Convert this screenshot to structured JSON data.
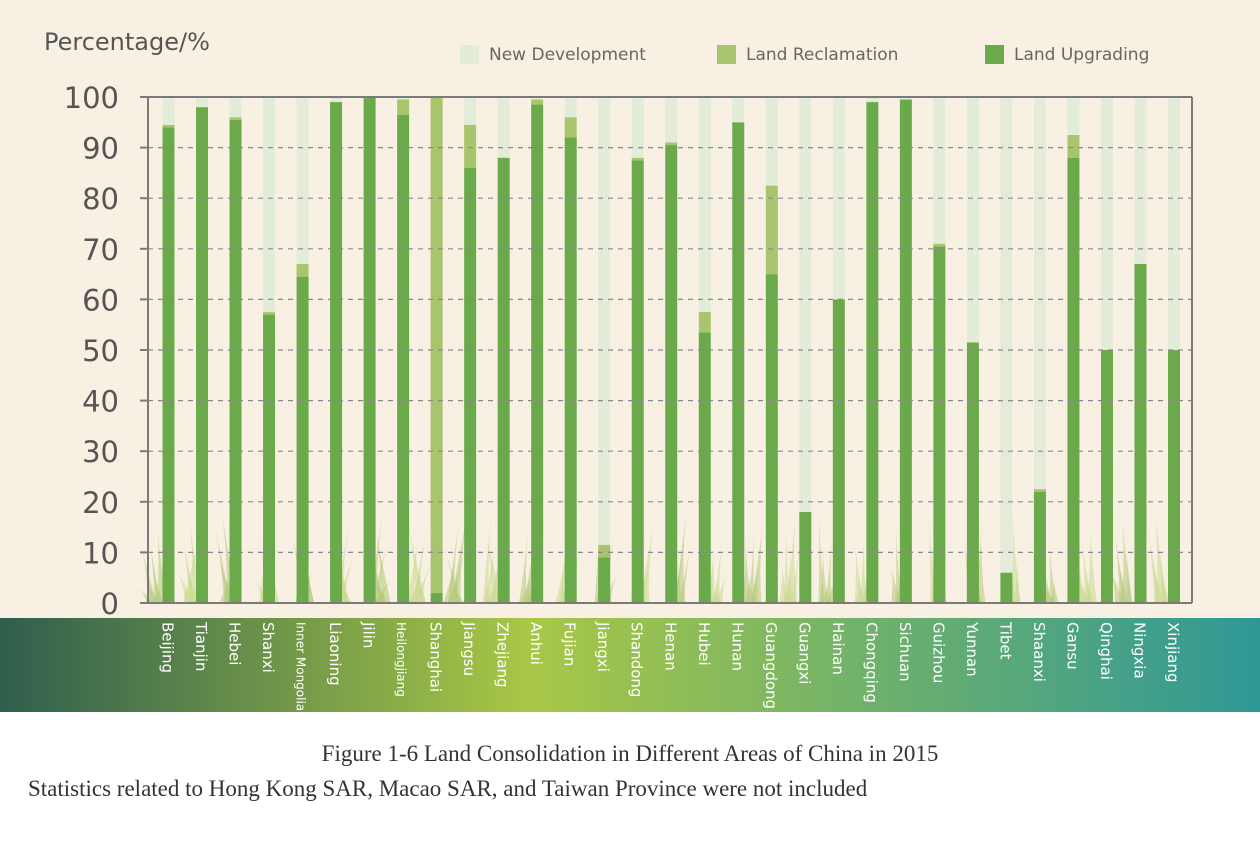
{
  "colors": {
    "background": "#f8f1e3",
    "new_development": "#e2ecd9",
    "land_reclamation": "#a8c46c",
    "land_upgrading": "#6aaa4a",
    "grid": "#8a8a8a",
    "axis_text": "#555555",
    "band_left": "#2f5e4d",
    "band_mid": "#a9c746",
    "band_right": "#2e9896"
  },
  "chart_data": {
    "type": "bar",
    "stacked": true,
    "ylabel": "Percentage/%",
    "ylim": [
      0,
      100
    ],
    "yticks": [
      0,
      10,
      20,
      30,
      40,
      50,
      60,
      70,
      80,
      90,
      100
    ],
    "grid": true,
    "legend_position": "top",
    "categories": [
      "Beijing",
      "Tianjin",
      "Hebei",
      "Shanxi",
      "Inner Mongolia",
      "Liaoning",
      "Jilin",
      "Heilongjiang",
      "Shanghai",
      "Jiangsu",
      "Zhejiang",
      "Anhui",
      "Fujian",
      "Jiangxi",
      "Shandong",
      "Henan",
      "Hubei",
      "Hunan",
      "Guangdong",
      "Guangxi",
      "Hainan",
      "Chongqing",
      "Sichuan",
      "Guizhou",
      "Yunnan",
      "Tibet",
      "Shaanxi",
      "Gansu",
      "Qinghai",
      "Ningxia",
      "Xinjiang"
    ],
    "series": [
      {
        "name": "Land Upgrading",
        "color": "#6aaa4a",
        "values": [
          94,
          98,
          95.5,
          57,
          64.5,
          99,
          100,
          96.5,
          2,
          86,
          88,
          98.5,
          92,
          9,
          87.5,
          90.5,
          53.5,
          95,
          65,
          18,
          60,
          99,
          99.5,
          70.5,
          51.5,
          6,
          22,
          88,
          50,
          67,
          50
        ]
      },
      {
        "name": "Land Reclamation",
        "color": "#a8c46c",
        "values": [
          0.5,
          0,
          0.5,
          0.5,
          2.5,
          0,
          0,
          3,
          98,
          8.5,
          0,
          1,
          4,
          2.5,
          0.5,
          0.5,
          4,
          0,
          17.5,
          0,
          0,
          0,
          0,
          0.5,
          0,
          0,
          0.5,
          4.5,
          0,
          0,
          0
        ]
      },
      {
        "name": "New Development",
        "color": "#e2ecd9",
        "values": [
          5.5,
          2,
          4,
          42.5,
          33,
          1,
          0,
          0.5,
          0,
          5.5,
          12,
          0.5,
          4,
          88.5,
          12,
          9,
          42.5,
          5,
          17.5,
          82,
          40,
          1,
          0.5,
          29,
          48.5,
          94,
          77.5,
          7.5,
          50,
          33,
          50
        ]
      }
    ],
    "legend": [
      "New Development",
      "Land Reclamation",
      "Land Upgrading"
    ]
  },
  "caption": {
    "title": "Figure 1-6  Land Consolidation in Different Areas of China in 2015",
    "note": "Statistics related to Hong Kong SAR, Macao SAR, and Taiwan Province were not included"
  }
}
